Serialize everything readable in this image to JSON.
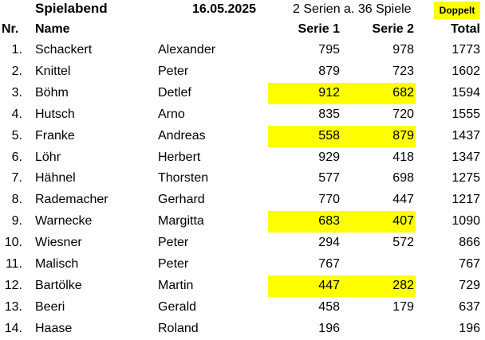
{
  "header": {
    "title": "Spielabend",
    "date": "16.05.2025",
    "series_info": "2 Serien a. 36 Spiele",
    "badge": "Doppelt",
    "badge_color": "#ffff00"
  },
  "columns": {
    "nr": "Nr.",
    "name": "Name",
    "serie1": "Serie 1",
    "serie2": "Serie 2",
    "total": "Total"
  },
  "rows": [
    {
      "nr": "1.",
      "last": "Schackert",
      "first": "Alexander",
      "s1": "795",
      "s2": "978",
      "total": "1773",
      "highlight": false
    },
    {
      "nr": "2.",
      "last": "Knittel",
      "first": "Peter",
      "s1": "879",
      "s2": "723",
      "total": "1602",
      "highlight": false
    },
    {
      "nr": "3.",
      "last": "Böhm",
      "first": "Detlef",
      "s1": "912",
      "s2": "682",
      "total": "1594",
      "highlight": true
    },
    {
      "nr": "4.",
      "last": "Hutsch",
      "first": "Arno",
      "s1": "835",
      "s2": "720",
      "total": "1555",
      "highlight": false
    },
    {
      "nr": "5.",
      "last": "Franke",
      "first": "Andreas",
      "s1": "558",
      "s2": "879",
      "total": "1437",
      "highlight": true
    },
    {
      "nr": "6.",
      "last": "Löhr",
      "first": "Herbert",
      "s1": "929",
      "s2": "418",
      "total": "1347",
      "highlight": false
    },
    {
      "nr": "7.",
      "last": "Hähnel",
      "first": "Thorsten",
      "s1": "577",
      "s2": "698",
      "total": "1275",
      "highlight": false
    },
    {
      "nr": "8.",
      "last": "Rademacher",
      "first": "Gerhard",
      "s1": "770",
      "s2": "447",
      "total": "1217",
      "highlight": false
    },
    {
      "nr": "9.",
      "last": "Warnecke",
      "first": "Margitta",
      "s1": "683",
      "s2": "407",
      "total": "1090",
      "highlight": true
    },
    {
      "nr": "10.",
      "last": "Wiesner",
      "first": "Peter",
      "s1": "294",
      "s2": "572",
      "total": "866",
      "highlight": false
    },
    {
      "nr": "11.",
      "last": "Malisch",
      "first": "Peter",
      "s1": "767",
      "s2": "",
      "total": "767",
      "highlight": false
    },
    {
      "nr": "12.",
      "last": "Bartölke",
      "first": "Martin",
      "s1": "447",
      "s2": "282",
      "total": "729",
      "highlight": true
    },
    {
      "nr": "13.",
      "last": "Beeri",
      "first": "Gerald",
      "s1": "458",
      "s2": "179",
      "total": "637",
      "highlight": false
    },
    {
      "nr": "14.",
      "last": "Haase",
      "first": "Roland",
      "s1": "196",
      "s2": "",
      "total": "196",
      "highlight": false
    }
  ]
}
